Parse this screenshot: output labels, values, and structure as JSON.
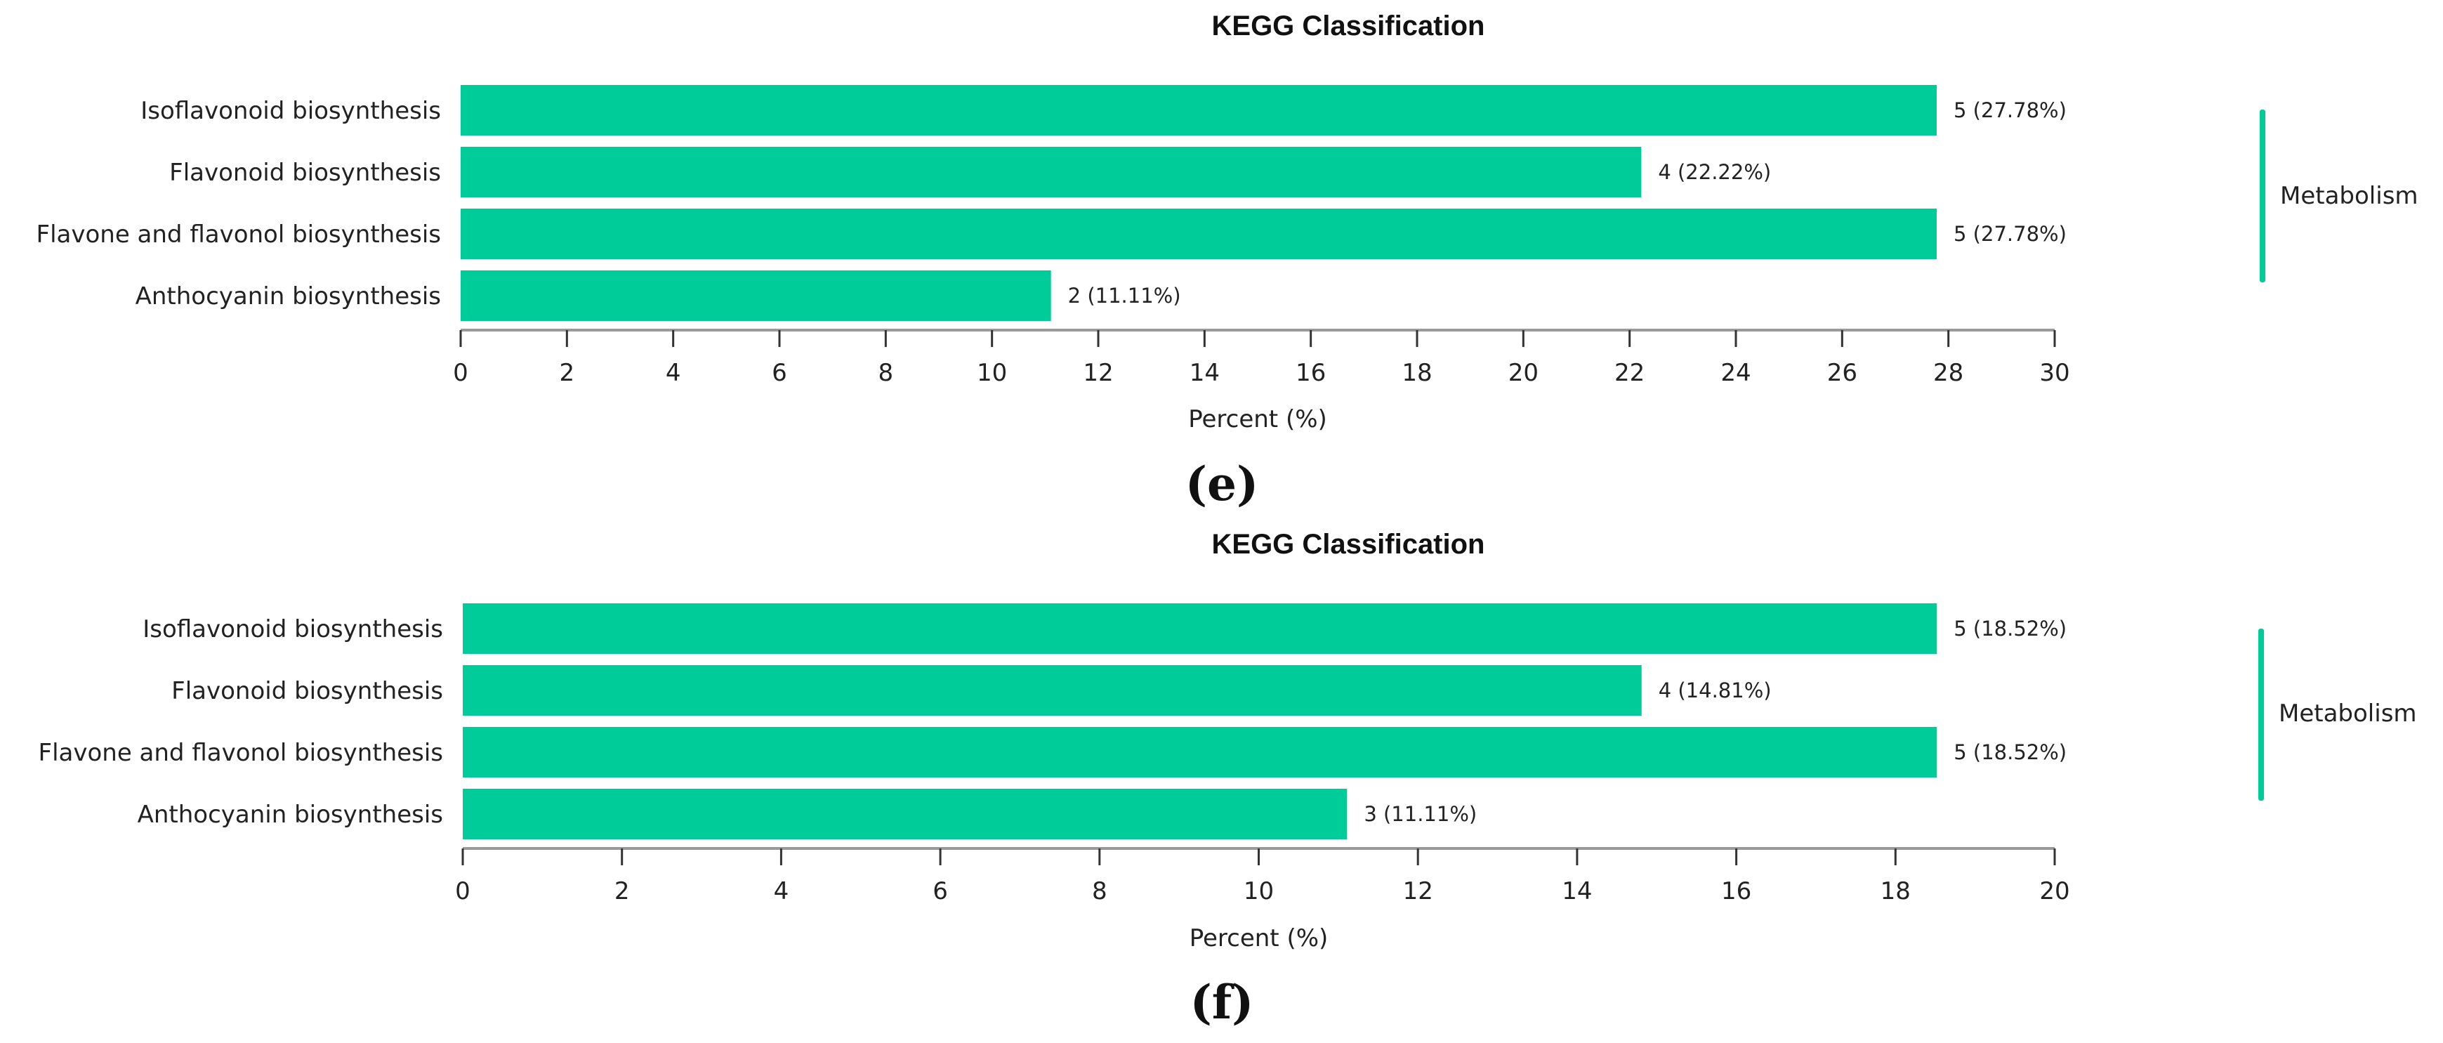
{
  "colors": {
    "bar": "#00cc99",
    "axis": "#9a9a9a",
    "group_bar": "#00cc99"
  },
  "chart_data": [
    {
      "type": "bar",
      "orientation": "horizontal",
      "title": "KEGG Classification",
      "panel_label": "(e)",
      "categories": [
        "Isoflavonoid biosynthesis",
        "Flavonoid biosynthesis",
        "Flavone and flavonol biosynthesis",
        "Anthocyanin biosynthesis"
      ],
      "values": [
        27.78,
        22.22,
        27.78,
        11.11
      ],
      "data_labels": [
        "5 (27.78%)",
        "4 (22.22%)",
        "5 (27.78%)",
        "2 (11.11%)"
      ],
      "xlabel": "Percent (%)",
      "xlim": [
        0,
        30
      ],
      "xticks": [
        0,
        2,
        4,
        6,
        8,
        10,
        12,
        14,
        16,
        18,
        20,
        22,
        24,
        26,
        28,
        30
      ],
      "group_label": "Metabolism"
    },
    {
      "type": "bar",
      "orientation": "horizontal",
      "title": "KEGG Classification",
      "panel_label": "(f)",
      "categories": [
        "Isoflavonoid biosynthesis",
        "Flavonoid biosynthesis",
        "Flavone and flavonol biosynthesis",
        "Anthocyanin biosynthesis"
      ],
      "values": [
        18.52,
        14.81,
        18.52,
        11.11
      ],
      "data_labels": [
        "5 (18.52%)",
        "4 (14.81%)",
        "5 (18.52%)",
        "3 (11.11%)"
      ],
      "xlabel": "Percent (%)",
      "xlim": [
        0,
        20
      ],
      "xticks": [
        0,
        2,
        4,
        6,
        8,
        10,
        12,
        14,
        16,
        18,
        20
      ],
      "group_label": "Metabolism"
    }
  ]
}
